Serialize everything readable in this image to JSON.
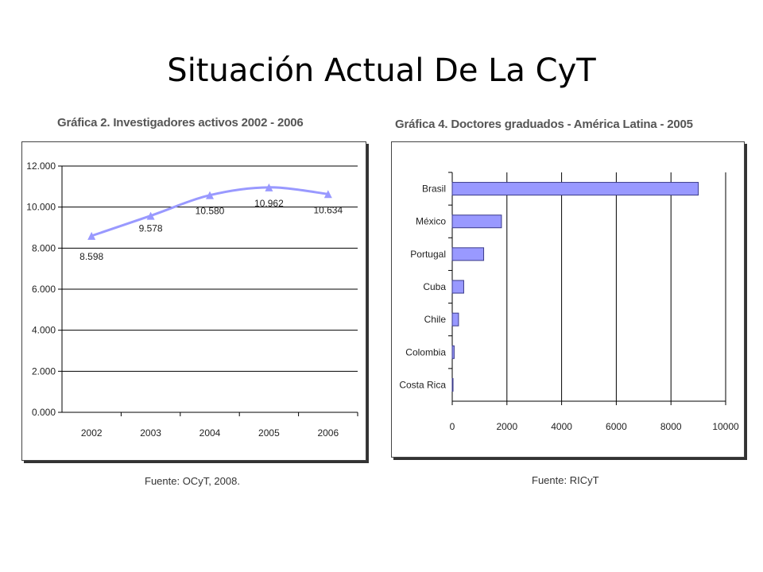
{
  "slide": {
    "title": "Situación Actual De La CyT"
  },
  "charts": {
    "left": {
      "source": "Fuente: OCyT, 2008."
    },
    "right": {
      "source": "Fuente: RICyT"
    }
  },
  "colors": {
    "series": "#9999FF",
    "bar_stroke": "#3a3a8a",
    "grid": "#000000"
  },
  "chart_data": [
    {
      "type": "line",
      "title": "Gráfica 2. Investigadores activos 2002 - 2006",
      "x": [
        "2002",
        "2003",
        "2004",
        "2005",
        "2006"
      ],
      "values": [
        8598,
        9578,
        10580,
        10962,
        10634
      ],
      "data_labels": [
        "8.598",
        "9.578",
        "10.580",
        "10.962",
        "10.634"
      ],
      "yticks": [
        "0.000",
        "2.000",
        "4.000",
        "6.000",
        "8.000",
        "10.000",
        "12.000"
      ],
      "ylim": [
        0,
        12000
      ],
      "grid": true,
      "marker": "triangle",
      "smooth": true
    },
    {
      "type": "bar",
      "orientation": "horizontal",
      "title": "Gráfica 4. Doctores graduados - América Latina - 2005",
      "categories": [
        "Brasil",
        "México",
        "Portugal",
        "Cuba",
        "Chile",
        "Colombia",
        "Costa Rica"
      ],
      "values": [
        9000,
        1800,
        1150,
        420,
        230,
        70,
        10
      ],
      "xticks": [
        "0",
        "2000",
        "4000",
        "6000",
        "8000",
        "10000"
      ],
      "xlim": [
        0,
        10000
      ],
      "grid": true
    }
  ]
}
